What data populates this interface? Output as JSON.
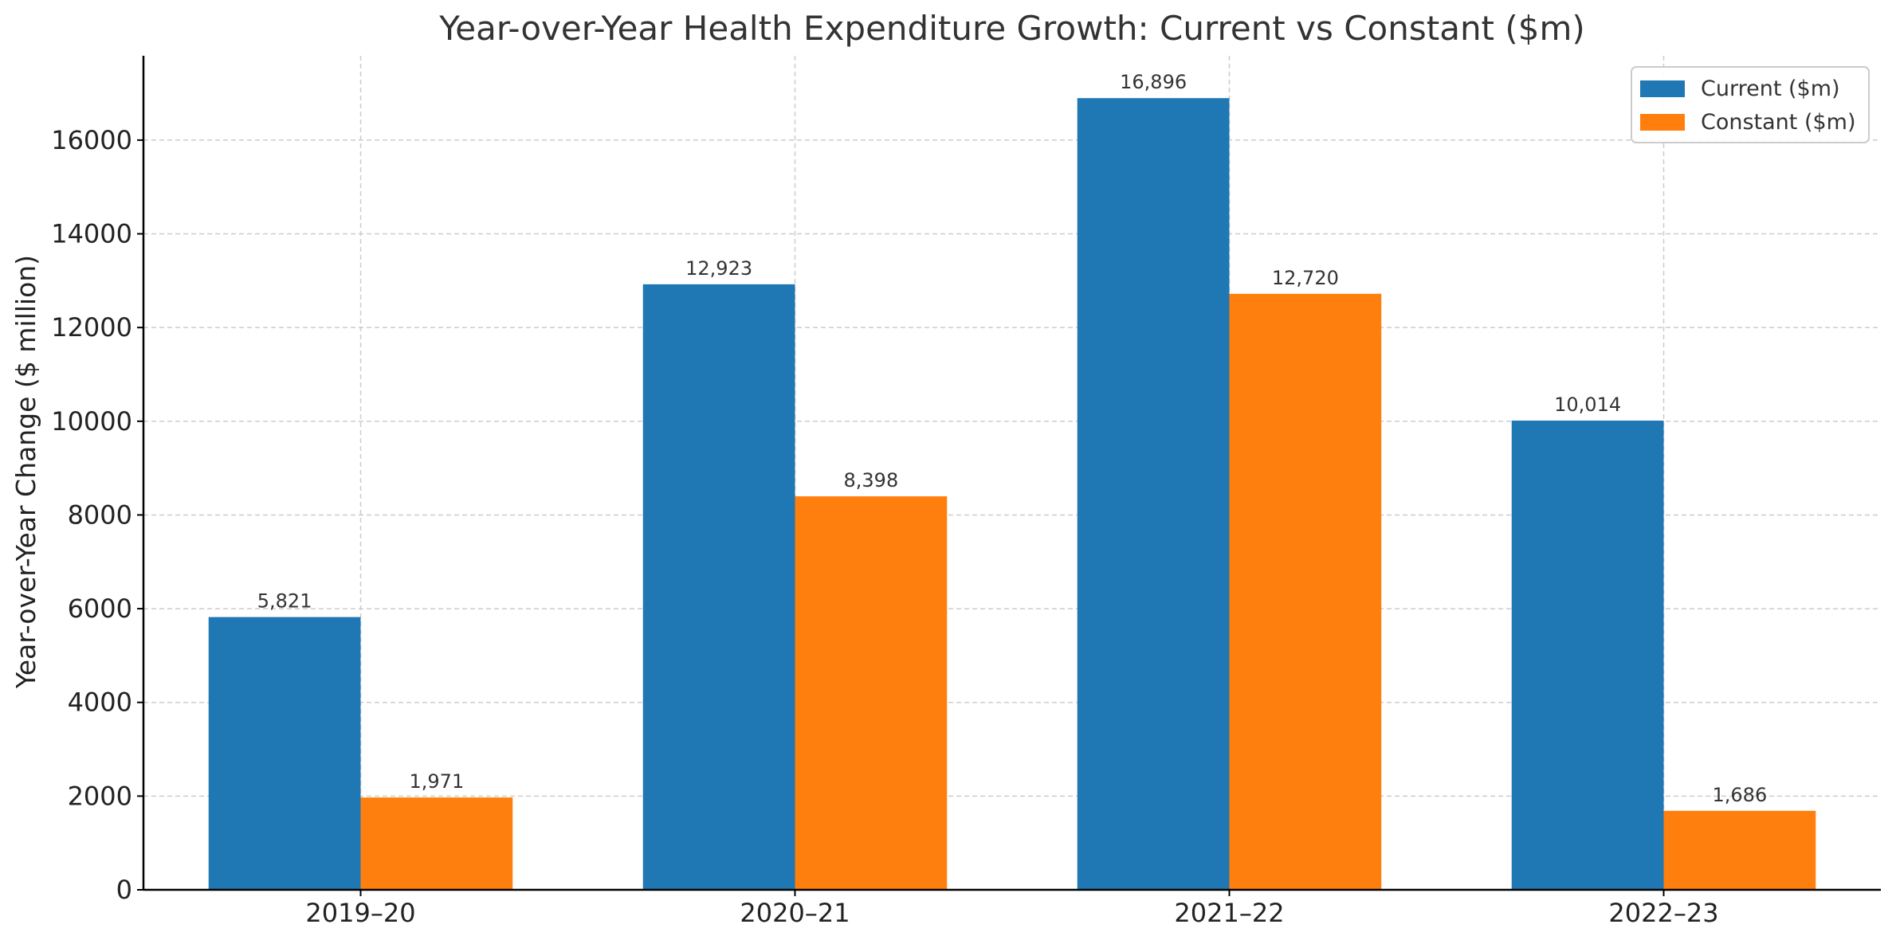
{
  "chart_data": {
    "type": "bar",
    "title": "Year-over-Year Health Expenditure Growth: Current vs Constant ($m)",
    "xlabel": "",
    "ylabel": "Year-over-Year Change ($ million)",
    "categories": [
      "2019–20",
      "2020–21",
      "2021–22",
      "2022–23"
    ],
    "series": [
      {
        "name": "Current ($m)",
        "color": "#1f77b4",
        "values": [
          5821,
          12923,
          16896,
          10014
        ],
        "labels": [
          "5,821",
          "12,923",
          "16,896",
          "10,014"
        ]
      },
      {
        "name": "Constant ($m)",
        "color": "#ff7f0e",
        "values": [
          1971,
          8398,
          12720,
          1686
        ],
        "labels": [
          "1,971",
          "8,398",
          "12,720",
          "1,686"
        ]
      }
    ],
    "ylim": [
      0,
      17800
    ],
    "yticks": [
      0,
      2000,
      4000,
      6000,
      8000,
      10000,
      12000,
      14000,
      16000
    ],
    "ytick_labels": [
      "0",
      "2000",
      "4000",
      "6000",
      "8000",
      "10000",
      "12000",
      "14000",
      "16000"
    ],
    "grid": true,
    "legend_position": "top-right"
  }
}
